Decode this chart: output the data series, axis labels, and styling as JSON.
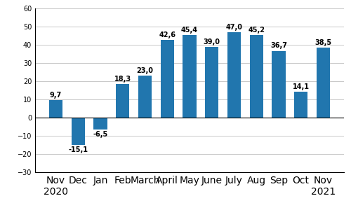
{
  "categories": [
    "Nov\n2020",
    "Dec",
    "Jan",
    "Feb",
    "March",
    "April",
    "May",
    "June",
    "July",
    "Aug",
    "Sep",
    "Oct",
    "Nov\n2021"
  ],
  "values": [
    9.7,
    -15.1,
    -6.5,
    18.3,
    23.0,
    42.6,
    45.4,
    39.0,
    47.0,
    45.2,
    36.7,
    14.1,
    38.5
  ],
  "bar_color": "#2176ae",
  "ylim": [
    -30,
    60
  ],
  "yticks": [
    -30,
    -20,
    -10,
    0,
    10,
    20,
    30,
    40,
    50,
    60
  ],
  "tick_fontsize": 7.0,
  "value_fontsize": 7.0,
  "bar_width": 0.6,
  "background_color": "#ffffff",
  "grid_color": "#c8c8c8"
}
